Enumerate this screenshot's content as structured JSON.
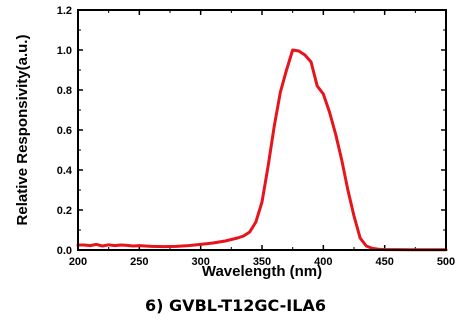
{
  "caption": "6) GVBL-T12GC-ILA6",
  "chart_data": {
    "type": "line",
    "title": "",
    "xlabel": "Wavelength (nm)",
    "ylabel": "Relative Responsivity(a.u.)",
    "xlim": [
      200,
      500
    ],
    "ylim": [
      0,
      1.2
    ],
    "x_ticks": [
      "200",
      "250",
      "300",
      "350",
      "400",
      "450",
      "500"
    ],
    "y_ticks": [
      "0.0",
      "0.2",
      "0.4",
      "0.6",
      "0.8",
      "1.0",
      "1.2"
    ],
    "grid": false,
    "series": [
      {
        "color": "#e8141c",
        "x": [
          200,
          205,
          210,
          215,
          220,
          225,
          230,
          235,
          240,
          245,
          250,
          255,
          260,
          270,
          280,
          290,
          300,
          310,
          320,
          330,
          335,
          340,
          345,
          350,
          355,
          360,
          365,
          370,
          375,
          380,
          385,
          390,
          395,
          400,
          405,
          410,
          415,
          420,
          425,
          430,
          435,
          440,
          445,
          450,
          455,
          460,
          470,
          480,
          490,
          500
        ],
        "y": [
          0.025,
          0.025,
          0.022,
          0.028,
          0.02,
          0.026,
          0.022,
          0.025,
          0.023,
          0.02,
          0.022,
          0.02,
          0.018,
          0.017,
          0.018,
          0.022,
          0.028,
          0.035,
          0.045,
          0.06,
          0.07,
          0.09,
          0.14,
          0.24,
          0.42,
          0.62,
          0.79,
          0.9,
          1.0,
          0.995,
          0.975,
          0.94,
          0.82,
          0.78,
          0.69,
          0.58,
          0.45,
          0.3,
          0.17,
          0.06,
          0.02,
          0.008,
          0.004,
          0.002,
          0.002,
          0.002,
          0.001,
          0.001,
          0.001,
          0.001
        ]
      }
    ]
  }
}
